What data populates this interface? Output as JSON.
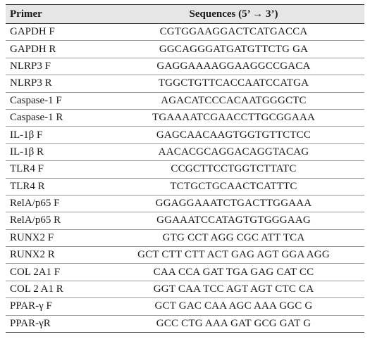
{
  "table": {
    "headers": {
      "primer": "Primer",
      "sequences": "Sequences (5’ → 3’)"
    },
    "rows": [
      {
        "primer": "GAPDH F",
        "sequence": "CGTGGAAGGACTCATGACCA"
      },
      {
        "primer": "GAPDH R",
        "sequence": "GGCAGGGATGATGTTCTG GA"
      },
      {
        "primer": "NLRP3 F",
        "sequence": "GAGGAAAAGGAAGGCCGACA"
      },
      {
        "primer": "NLRP3 R",
        "sequence": "TGGCTGTTCACCAATCCATGA"
      },
      {
        "primer": "Caspase-1 F",
        "sequence": "AGACATCCCACAATGGGCTC"
      },
      {
        "primer": "Caspase-1 R",
        "sequence": "TGAAAATCGAACCTTGCGGAAA"
      },
      {
        "primer": "IL-1β F",
        "sequence": "GAGCAACAAGTGGTGTTCTCC"
      },
      {
        "primer": "IL-1β R",
        "sequence": "AACACGCAGGACAGGTACAG"
      },
      {
        "primer": "TLR4 F",
        "sequence": "CCGCTTCCTGGTCTTATC"
      },
      {
        "primer": "TLR4 R",
        "sequence": "TCTGCTGCAACTCATTTC"
      },
      {
        "primer": "RelA/p65 F",
        "sequence": "GGAGGAAATCTGACTTGGAAA"
      },
      {
        "primer": "RelA/p65 R",
        "sequence": "GGAAATCCATAGTGTGGGAAG"
      },
      {
        "primer": "RUNX2 F",
        "sequence": "GTG CCT AGG CGC ATT TCA"
      },
      {
        "primer": "RUNX2 R",
        "sequence": "GCT CTT CTT ACT GAG AGT GGA AGG"
      },
      {
        "primer": "COL 2A1 F",
        "sequence": "CAA CCA GAT TGA GAG CAT CC"
      },
      {
        "primer": "COL 2 A1 R",
        "sequence": "GGT CAA TCC AGT AGT CTC CA"
      },
      {
        "primer": "PPAR-γ F",
        "sequence": "GCT GAC CAA AGC AAA GGC G"
      },
      {
        "primer": "PPAR-γR",
        "sequence": "GCC CTG AAA GAT GCG GAT G"
      }
    ]
  }
}
